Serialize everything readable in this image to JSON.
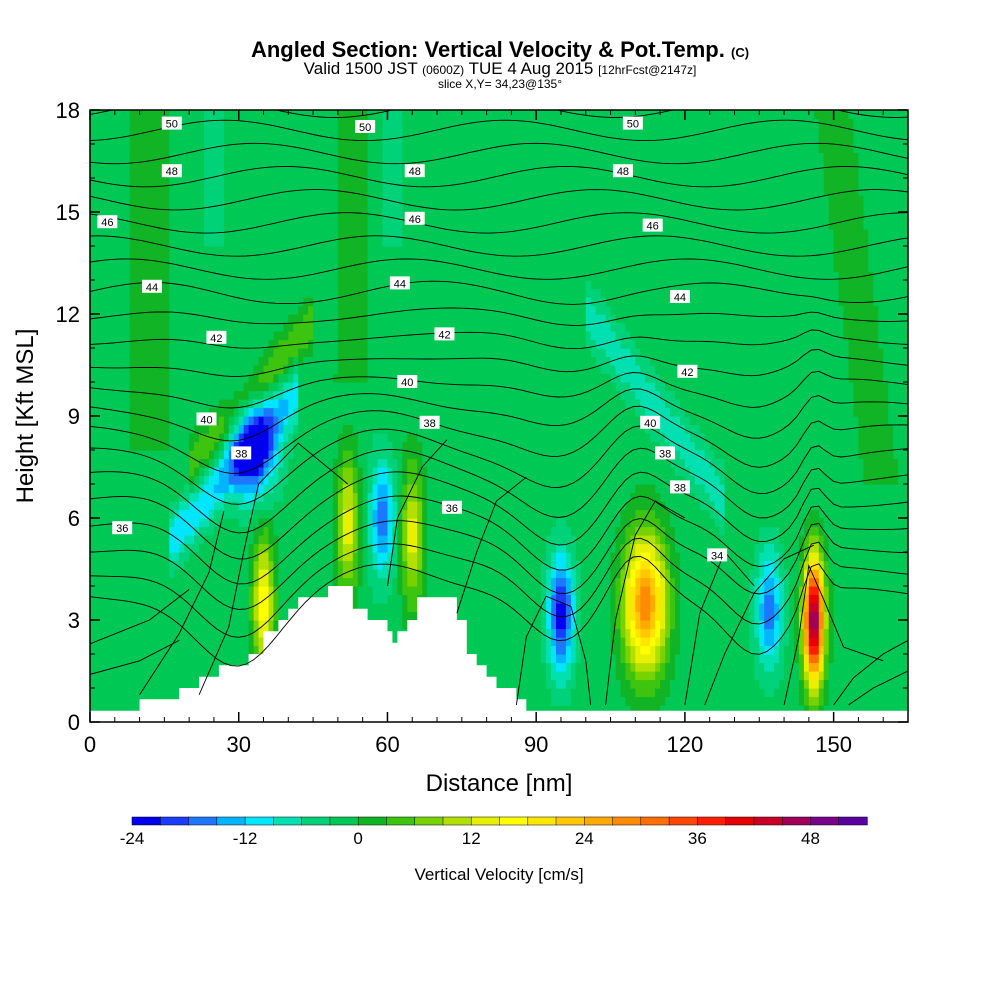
{
  "header": {
    "title_main": "Angled Section: Vertical Velocity & Pot.Temp.",
    "title_units": "(C)",
    "valid_a": "Valid 1500 JST",
    "valid_b": "(0600Z)",
    "valid_c": "TUE 4 Aug 2015",
    "valid_d": "[12hrFcst@2147z]",
    "slice": "slice X,Y= 34,23@135°"
  },
  "chart_data": {
    "type": "heatmap",
    "xlabel": "Distance [nm]",
    "ylabel": "Height [Kft MSL]",
    "xlim": [
      0,
      165
    ],
    "ylim": [
      0,
      18
    ],
    "x_ticks": [
      0,
      30,
      60,
      90,
      120,
      150
    ],
    "y_ticks": [
      0,
      3,
      6,
      9,
      12,
      15,
      18
    ],
    "fill_variable": "Vertical Velocity [cm/s]",
    "colorbar": {
      "title": "Vertical Velocity [cm/s]",
      "tick_labels": [
        "-24",
        "-12",
        "0",
        "12",
        "24",
        "36",
        "48"
      ],
      "tick_values": [
        -24,
        -12,
        0,
        12,
        24,
        36,
        48
      ],
      "levels": [
        -24,
        -21,
        -18,
        -15,
        -12,
        -9,
        -6,
        -3,
        0,
        3,
        6,
        9,
        12,
        15,
        18,
        21,
        24,
        27,
        30,
        33,
        36,
        39,
        42,
        45,
        48,
        51,
        54
      ],
      "colors": [
        "#0000ee",
        "#1a3cff",
        "#1e78ff",
        "#00b4ff",
        "#00e6ff",
        "#00e0b0",
        "#00d27a",
        "#00c855",
        "#10b424",
        "#3cc40e",
        "#78d200",
        "#b4e000",
        "#e6f000",
        "#ffff00",
        "#ffe600",
        "#ffc800",
        "#ffaa00",
        "#ff8c00",
        "#ff6e00",
        "#ff4600",
        "#ff1e00",
        "#e60000",
        "#c80028",
        "#a0005a",
        "#78008c",
        "#5a00a0"
      ]
    },
    "terrain_profile": [
      [
        10,
        0.67
      ],
      [
        15,
        0.67
      ],
      [
        18,
        1.0
      ],
      [
        22,
        1.33
      ],
      [
        26,
        1.67
      ],
      [
        30,
        1.67
      ],
      [
        32,
        2.0
      ],
      [
        35,
        2.67
      ],
      [
        38,
        3.0
      ],
      [
        40,
        3.33
      ],
      [
        42,
        3.67
      ],
      [
        46,
        3.67
      ],
      [
        48,
        4.0
      ],
      [
        52,
        4.0
      ],
      [
        53,
        3.33
      ],
      [
        56,
        3.0
      ],
      [
        60,
        2.67
      ],
      [
        61,
        2.33
      ],
      [
        62,
        2.67
      ],
      [
        64,
        3.0
      ],
      [
        66,
        3.67
      ],
      [
        72,
        3.67
      ],
      [
        74,
        3.0
      ],
      [
        76,
        2.0
      ],
      [
        78,
        1.67
      ],
      [
        80,
        1.33
      ],
      [
        82,
        1.0
      ],
      [
        86,
        0.67
      ],
      [
        88,
        0.33
      ],
      [
        89,
        0
      ]
    ],
    "updraft_cores": [
      {
        "x": 35,
        "y": 3.5,
        "w_cm_s": 18
      },
      {
        "x": 52,
        "y": 5.8,
        "w_cm_s": 15
      },
      {
        "x": 65,
        "y": 5.5,
        "w_cm_s": 15
      },
      {
        "x": 112,
        "y": 3.5,
        "w_cm_s": 30
      },
      {
        "x": 146,
        "y": 3.0,
        "w_cm_s": 51
      }
    ],
    "downdraft_cores": [
      {
        "x": 33,
        "y": 8.0,
        "w_cm_s": -21
      },
      {
        "x": 59,
        "y": 6.0,
        "w_cm_s": -15
      },
      {
        "x": 95,
        "y": 3.2,
        "w_cm_s": -21
      },
      {
        "x": 137,
        "y": 3.3,
        "w_cm_s": -15
      }
    ],
    "isentrope_labels": [
      {
        "value": "50",
        "x": 16.5,
        "y": 17.6
      },
      {
        "value": "50",
        "x": 55.5,
        "y": 17.5
      },
      {
        "value": "50",
        "x": 109.5,
        "y": 17.6
      },
      {
        "value": "48",
        "x": 16.5,
        "y": 16.2
      },
      {
        "value": "48",
        "x": 65.5,
        "y": 16.2
      },
      {
        "value": "48",
        "x": 107.5,
        "y": 16.2
      },
      {
        "value": "46",
        "x": 3.5,
        "y": 14.7
      },
      {
        "value": "46",
        "x": 65.5,
        "y": 14.8
      },
      {
        "value": "46",
        "x": 113.5,
        "y": 14.6
      },
      {
        "value": "44",
        "x": 12.5,
        "y": 12.8
      },
      {
        "value": "44",
        "x": 62.5,
        "y": 12.9
      },
      {
        "value": "44",
        "x": 119,
        "y": 12.5
      },
      {
        "value": "42",
        "x": 25.5,
        "y": 11.3
      },
      {
        "value": "42",
        "x": 71.5,
        "y": 11.4
      },
      {
        "value": "42",
        "x": 120.5,
        "y": 10.3
      },
      {
        "value": "40",
        "x": 23.5,
        "y": 8.9
      },
      {
        "value": "40",
        "x": 64,
        "y": 10.0
      },
      {
        "value": "40",
        "x": 113,
        "y": 8.8
      },
      {
        "value": "38",
        "x": 30.5,
        "y": 7.9
      },
      {
        "value": "38",
        "x": 68.5,
        "y": 8.8
      },
      {
        "value": "38",
        "x": 116,
        "y": 7.9
      },
      {
        "value": "38",
        "x": 119,
        "y": 6.9
      },
      {
        "value": "36",
        "x": 6.5,
        "y": 5.7
      },
      {
        "value": "36",
        "x": 73,
        "y": 6.3
      },
      {
        "value": "34",
        "x": 126.5,
        "y": 4.9
      }
    ]
  }
}
